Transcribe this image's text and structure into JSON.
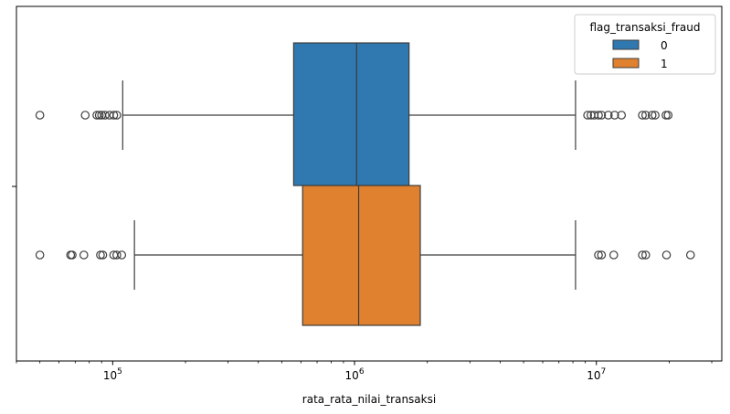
{
  "chart_data": {
    "type": "box",
    "xlabel": "rata_rata_nilai_transaksi",
    "ylabel": "",
    "xscale": "log",
    "xlim": [
      40000,
      33000000
    ],
    "x_ticks": [
      {
        "value": 100000,
        "base": "10",
        "exp": "5"
      },
      {
        "value": 1000000,
        "base": "10",
        "exp": "6"
      },
      {
        "value": 10000000,
        "base": "10",
        "exp": "7"
      }
    ],
    "legend": {
      "title": "flag_transaksi_fraud",
      "placement": "top-right"
    },
    "series": [
      {
        "name": "0",
        "color": "#2f78b0",
        "whisker_low": 110000,
        "q1": 560000,
        "median": 1020000,
        "q3": 1680000,
        "whisker_high": 8200000,
        "outliers": [
          50000,
          77000,
          86000,
          88000,
          90000,
          93000,
          97000,
          101000,
          104000,
          9200000,
          9500000,
          9800000,
          10200000,
          10500000,
          11200000,
          11900000,
          12700000,
          15500000,
          16000000,
          17000000,
          17500000,
          19400000,
          19800000
        ]
      },
      {
        "name": "1",
        "color": "#e0812f",
        "whisker_low": 123000,
        "q1": 610000,
        "median": 1040000,
        "q3": 1870000,
        "whisker_high": 8200000,
        "outliers": [
          50000,
          67000,
          68000,
          76000,
          89000,
          91000,
          101000,
          104000,
          109000,
          10200000,
          10500000,
          11800000,
          15500000,
          16000000,
          19500000,
          24500000
        ]
      }
    ]
  }
}
